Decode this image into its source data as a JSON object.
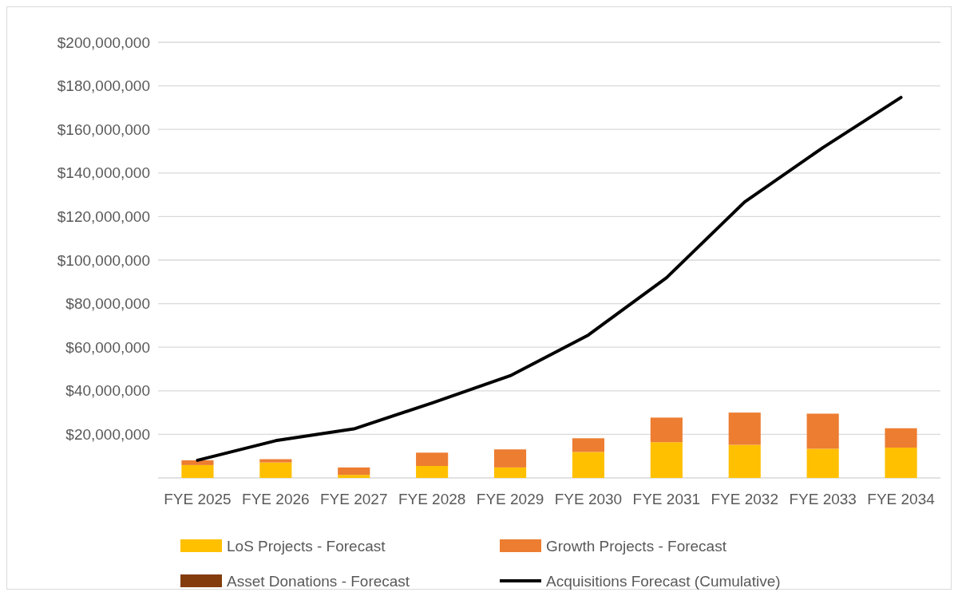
{
  "chart_data": {
    "type": "bar",
    "stacked": true,
    "categories": [
      "FYE 2025",
      "FYE 2026",
      "FYE 2027",
      "FYE 2028",
      "FYE 2029",
      "FYE 2030",
      "FYE 2031",
      "FYE 2032",
      "FYE 2033",
      "FYE 2034"
    ],
    "series": [
      {
        "name": "LoS Projects - Forecast",
        "color": "#ffc000",
        "values": [
          5900000,
          7100000,
          1400000,
          5500000,
          4800000,
          11900000,
          16400000,
          15200000,
          13400000,
          13900000
        ]
      },
      {
        "name": "Growth Projects - Forecast",
        "color": "#ed7d31",
        "values": [
          2200000,
          1500000,
          3400000,
          6100000,
          8300000,
          6300000,
          11300000,
          14800000,
          16100000,
          8900000
        ]
      },
      {
        "name": "Asset Donations - Forecast",
        "color": "#843c0c",
        "values": [
          null,
          null,
          null,
          null,
          null,
          null,
          null,
          null,
          null,
          null
        ]
      },
      {
        "name": "Acquisitions Forecast (Cumulative)",
        "type": "line",
        "color": "#000000",
        "values": [
          8100000,
          17100000,
          22500000,
          34400000,
          46900000,
          65600000,
          91900000,
          126700000,
          151600000,
          174700000
        ]
      }
    ],
    "ylim": [
      0,
      200000000
    ],
    "yticks": [
      {
        "value": 20000000,
        "label": "$20,000,000"
      },
      {
        "value": 40000000,
        "label": "$40,000,000"
      },
      {
        "value": 60000000,
        "label": "$60,000,000"
      },
      {
        "value": 80000000,
        "label": "$80,000,000"
      },
      {
        "value": 100000000,
        "label": "$100,000,000"
      },
      {
        "value": 120000000,
        "label": "$120,000,000"
      },
      {
        "value": 140000000,
        "label": "$140,000,000"
      },
      {
        "value": 160000000,
        "label": "$160,000,000"
      },
      {
        "value": 180000000,
        "label": "$180,000,000"
      },
      {
        "value": 200000000,
        "label": "$200,000,000"
      }
    ],
    "grid": "y",
    "legend": "bottom",
    "marker": "none",
    "line_style": "solid"
  }
}
